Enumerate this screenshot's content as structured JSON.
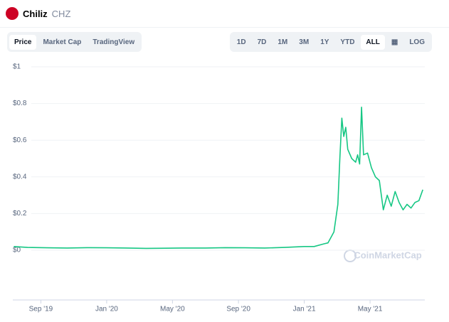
{
  "header": {
    "name": "Chiliz",
    "symbol": "CHZ"
  },
  "tabs": [
    "Price",
    "Market Cap",
    "TradingView"
  ],
  "ranges": [
    "1D",
    "7D",
    "1M",
    "3M",
    "1Y",
    "YTD",
    "ALL"
  ],
  "log_label": "LOG",
  "watermark": "CoinMarketCap",
  "chart_data": {
    "type": "line",
    "color": "#16c784",
    "grid": true,
    "log_scale": false,
    "x": [
      2019.53,
      2019.6,
      2019.7,
      2019.8,
      2019.9,
      2020.0,
      2020.1,
      2020.2,
      2020.3,
      2020.4,
      2020.5,
      2020.6,
      2020.7,
      2020.8,
      2020.9,
      2021.0,
      2021.05,
      2021.1,
      2021.12,
      2021.15,
      2021.17,
      2021.18,
      2021.19,
      2021.2,
      2021.21,
      2021.22,
      2021.24,
      2021.26,
      2021.27,
      2021.28,
      2021.29,
      2021.3,
      2021.32,
      2021.34,
      2021.36,
      2021.38,
      2021.39,
      2021.4,
      2021.42,
      2021.44,
      2021.46,
      2021.48,
      2021.5,
      2021.52,
      2021.54,
      2021.56,
      2021.58,
      2021.6
    ],
    "values": [
      0.02,
      0.015,
      0.013,
      0.012,
      0.014,
      0.013,
      0.012,
      0.01,
      0.011,
      0.012,
      0.012,
      0.014,
      0.013,
      0.012,
      0.015,
      0.02,
      0.02,
      0.035,
      0.04,
      0.1,
      0.25,
      0.5,
      0.72,
      0.62,
      0.67,
      0.55,
      0.5,
      0.48,
      0.52,
      0.47,
      0.78,
      0.52,
      0.53,
      0.45,
      0.4,
      0.38,
      0.3,
      0.22,
      0.3,
      0.24,
      0.32,
      0.26,
      0.22,
      0.25,
      0.23,
      0.26,
      0.27,
      0.33
    ],
    "xlim": [
      2019.525,
      2021.61
    ],
    "xticks": [
      {
        "value": 2019.667,
        "label": "Sep '19"
      },
      {
        "value": 2020.0,
        "label": "Jan '20"
      },
      {
        "value": 2020.333,
        "label": "May '20"
      },
      {
        "value": 2020.667,
        "label": "Sep '20"
      },
      {
        "value": 2021.0,
        "label": "Jan '21"
      },
      {
        "value": 2021.333,
        "label": "May '21"
      }
    ],
    "ylim": [
      0,
      1
    ],
    "yticks": [
      {
        "value": 0,
        "label": "$0"
      },
      {
        "value": 0.2,
        "label": "$0.2"
      },
      {
        "value": 0.4,
        "label": "$0.4"
      },
      {
        "value": 0.6,
        "label": "$0.6"
      },
      {
        "value": 0.8,
        "label": "$0.8"
      },
      {
        "value": 1,
        "label": "$1"
      }
    ]
  }
}
